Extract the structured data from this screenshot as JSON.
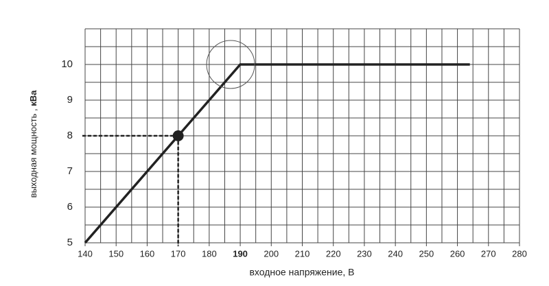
{
  "chart_data": {
    "type": "line",
    "xlabel": "входное напряжение, В",
    "ylabel": "выходная мощность ,",
    "ylabel_unit": "кВа",
    "x": [
      140,
      190,
      264
    ],
    "series": [
      {
        "color": "#222222",
        "values": [
          5,
          10,
          10
        ]
      }
    ],
    "xlim": [
      140,
      280
    ],
    "ylim": [
      5,
      11
    ],
    "xticks": [
      140,
      150,
      160,
      170,
      180,
      190,
      200,
      210,
      220,
      230,
      240,
      250,
      260,
      270,
      280
    ],
    "yticks": [
      5,
      6,
      7,
      8,
      9,
      10
    ],
    "xgrid": [
      145,
      155,
      165,
      175,
      185,
      195,
      205,
      215,
      225,
      235,
      245,
      255,
      265,
      275
    ],
    "ygrid": [
      5.5,
      6.5,
      7.5,
      8.5,
      9.5,
      10.5,
      11
    ],
    "grid": true,
    "highlight_x": 190,
    "point": {
      "x": 170,
      "y": 8
    }
  }
}
